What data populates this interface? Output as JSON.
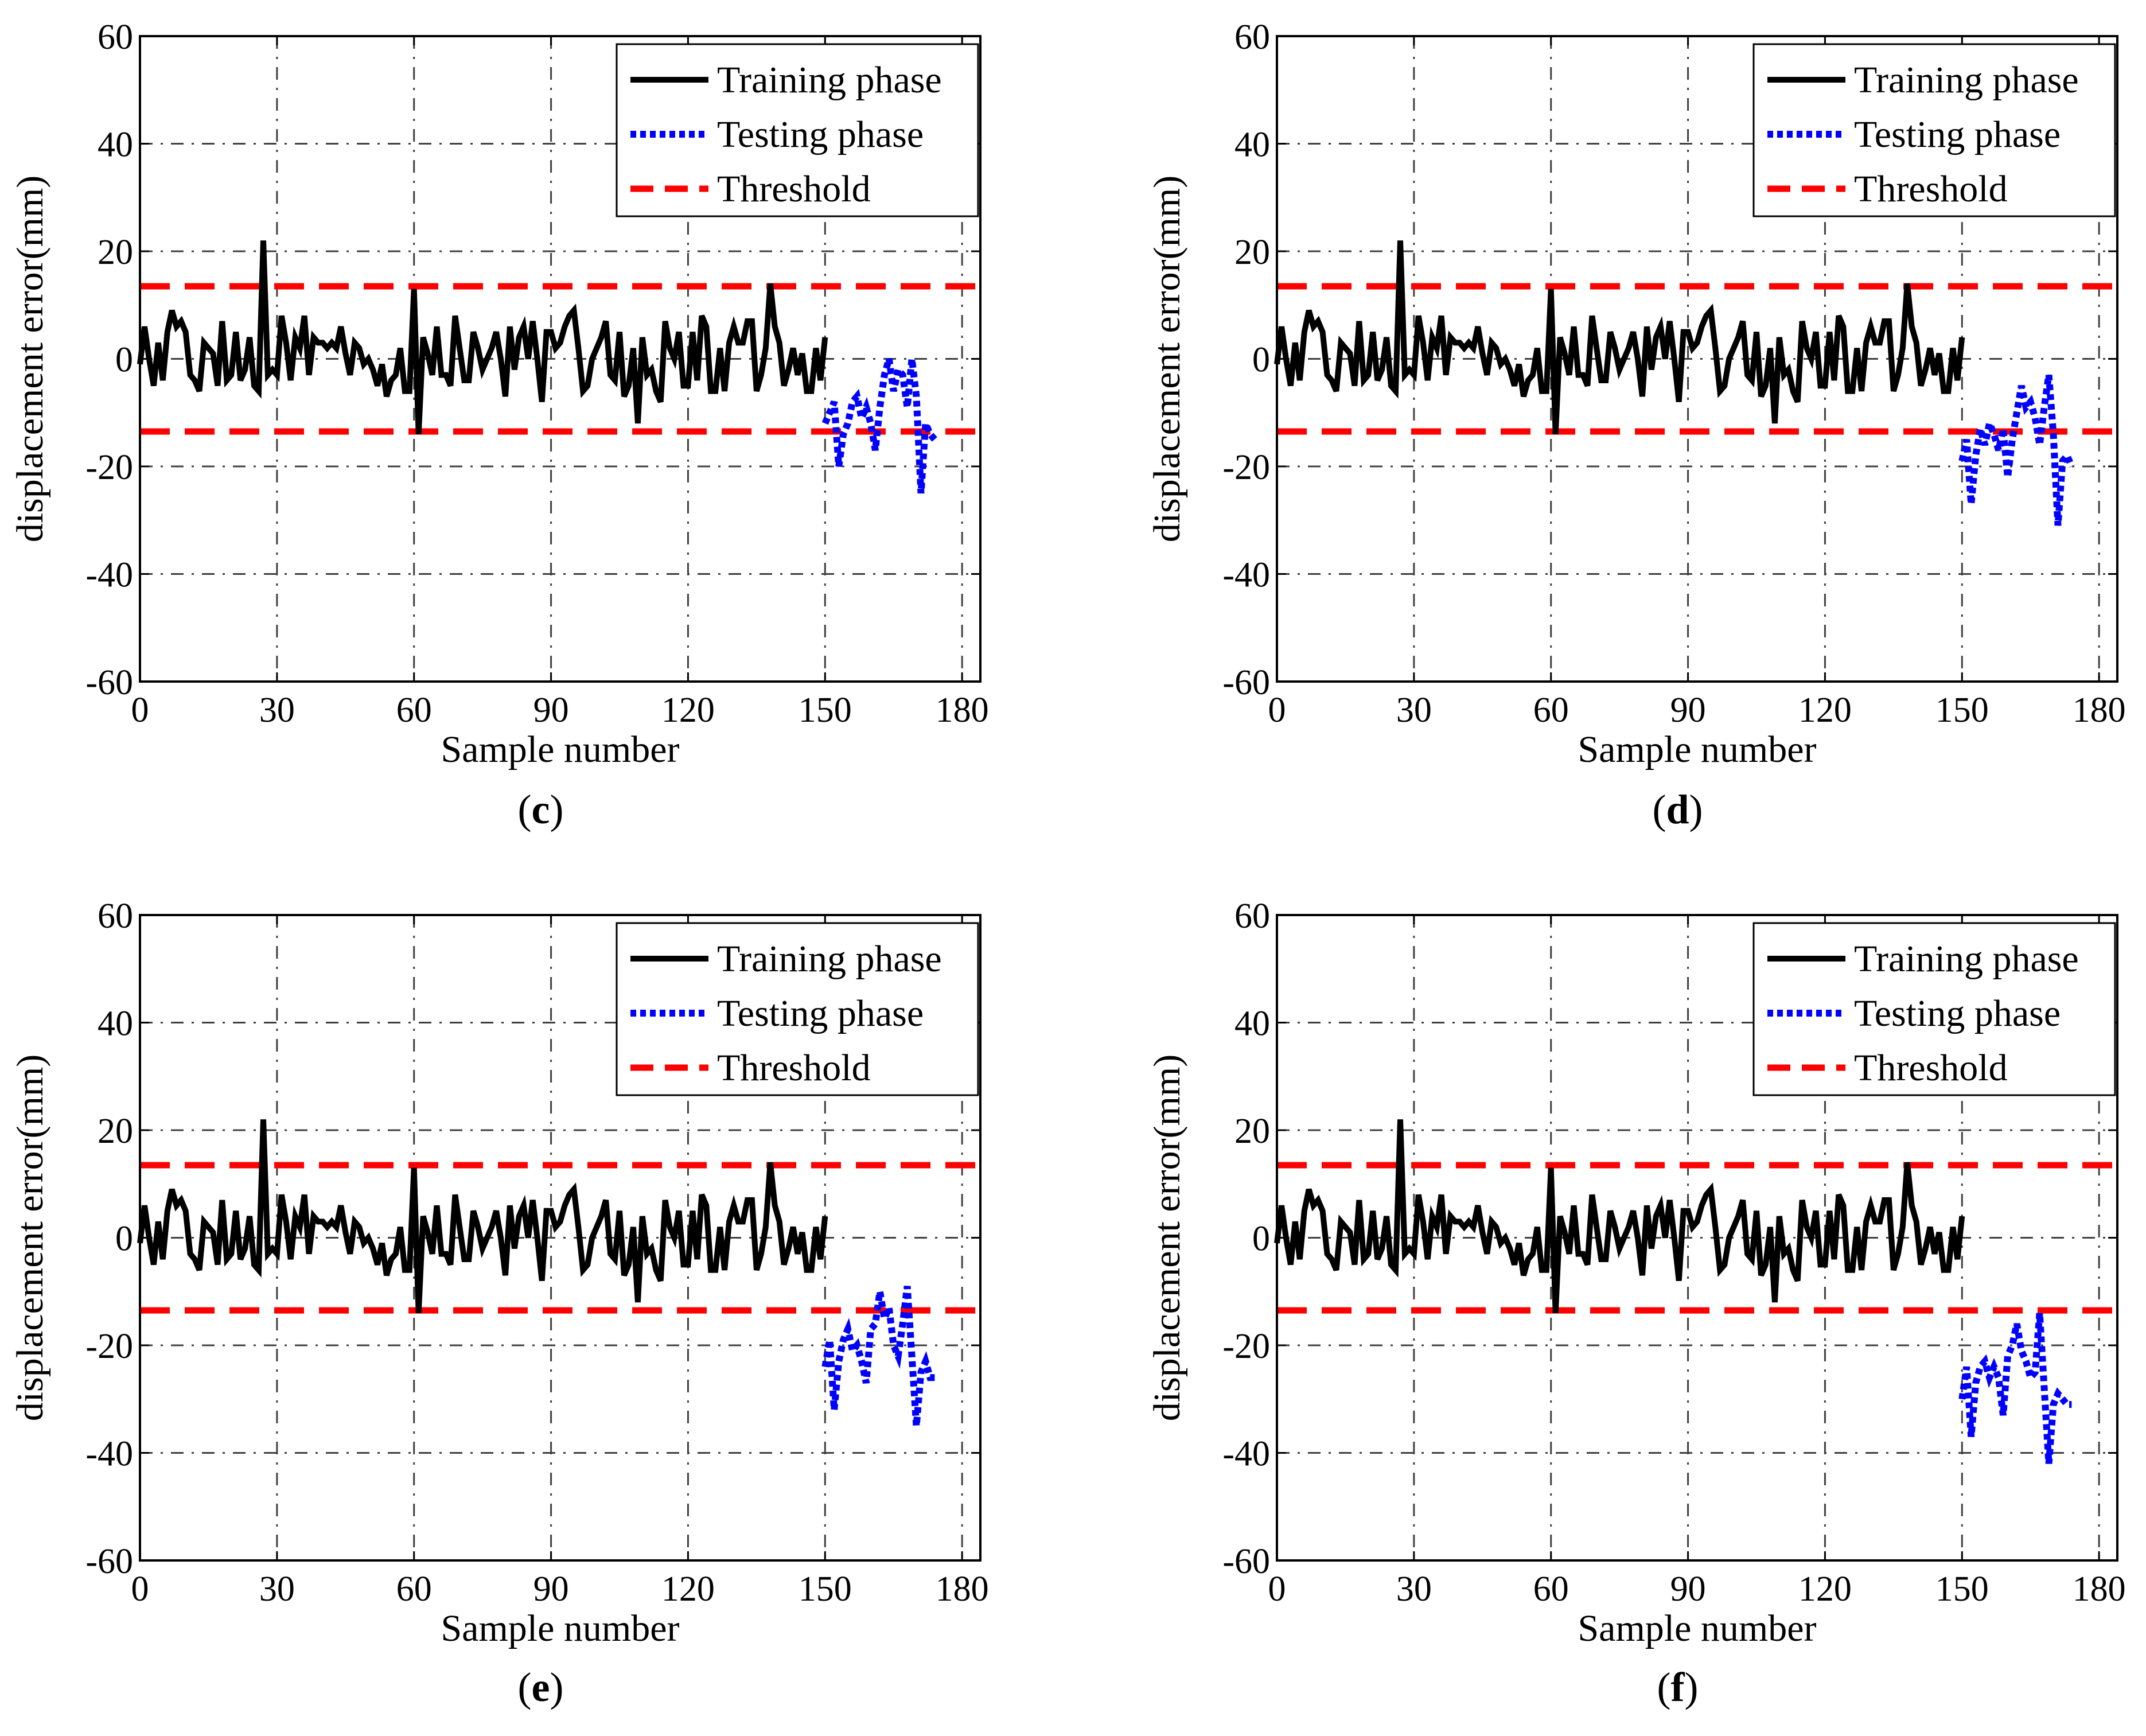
{
  "figure_title": "",
  "chart_data": [
    {
      "panel": "(c)",
      "label_letter": "c",
      "type": "line",
      "xlabel": "Sample number",
      "ylabel": "displacement error(mm)",
      "xlim": [
        0,
        184
      ],
      "ylim": [
        -60,
        60
      ],
      "xticks": [
        0,
        30,
        60,
        90,
        120,
        150,
        180
      ],
      "yticks": [
        -60,
        -40,
        -20,
        0,
        20,
        40,
        60
      ],
      "grid": true,
      "legend_position": "top-right",
      "legend": [
        "Training phase",
        "Testing phase",
        "Threshold"
      ],
      "colors": {
        "training": "#000000",
        "testing": "#0000ff",
        "threshold": "#ff0000"
      },
      "threshold_upper": 13.5,
      "threshold_lower": -13.5,
      "training_x_start": 0,
      "training_values": [
        -1,
        6,
        0,
        -5,
        3,
        -4,
        5,
        9,
        6,
        7,
        5,
        -3,
        -4,
        -6,
        3,
        2,
        1,
        -5,
        7,
        -4,
        -3,
        5,
        -4,
        -2,
        4,
        -5,
        -6,
        22,
        -3,
        -2,
        -3,
        8,
        3,
        -4,
        4,
        2,
        8,
        -3,
        4,
        3,
        3,
        2,
        3,
        2,
        6,
        1,
        -3,
        3,
        2,
        -1,
        0,
        -2,
        -5,
        -1,
        -7,
        -4,
        -3,
        2,
        -6,
        -6,
        13,
        -14,
        4,
        1,
        -3,
        6,
        -3,
        -3,
        -5,
        8,
        2,
        -4,
        -4,
        5,
        2,
        -2,
        0,
        2,
        5,
        0,
        -7,
        6,
        -2,
        4,
        6,
        0,
        7,
        0,
        -8,
        5,
        5,
        2,
        3,
        6,
        8,
        9,
        2,
        -6,
        -5,
        0,
        2,
        4,
        7,
        -3,
        -4,
        5,
        -7,
        -5,
        2,
        -12,
        4,
        -3,
        -2,
        -6,
        -8,
        7,
        2,
        0,
        5,
        -5,
        -5,
        5,
        -4,
        8,
        6,
        -6,
        -6,
        2,
        -6,
        3,
        6,
        3,
        3,
        7,
        7,
        -6,
        -3,
        2,
        14,
        6,
        3,
        -5,
        -2,
        2,
        -3,
        1,
        -6,
        -6,
        2,
        -4,
        4
      ],
      "testing_x_start": 150,
      "testing_values": [
        -12,
        -10,
        -8,
        -20,
        -14,
        -12,
        -8,
        -7,
        -11,
        -9,
        -12,
        -17,
        -9,
        -3,
        0,
        -6,
        -2,
        -3,
        -9,
        0,
        -7,
        -25,
        -12,
        -14,
        -15
      ]
    },
    {
      "panel": "(d)",
      "label_letter": "d",
      "type": "line",
      "xlabel": "Sample number",
      "ylabel": "displacement error(mm)",
      "xlim": [
        0,
        184
      ],
      "ylim": [
        -60,
        60
      ],
      "xticks": [
        0,
        30,
        60,
        90,
        120,
        150,
        180
      ],
      "yticks": [
        -60,
        -40,
        -20,
        0,
        20,
        40,
        60
      ],
      "grid": true,
      "legend_position": "top-right",
      "legend": [
        "Training phase",
        "Testing phase",
        "Threshold"
      ],
      "colors": {
        "training": "#000000",
        "testing": "#0000ff",
        "threshold": "#ff0000"
      },
      "threshold_upper": 13.5,
      "threshold_lower": -13.5,
      "training_x_start": 0,
      "training_values": [
        -1,
        6,
        0,
        -5,
        3,
        -4,
        5,
        9,
        6,
        7,
        5,
        -3,
        -4,
        -6,
        3,
        2,
        1,
        -5,
        7,
        -4,
        -3,
        5,
        -4,
        -2,
        4,
        -5,
        -6,
        22,
        -3,
        -2,
        -3,
        8,
        3,
        -4,
        4,
        2,
        8,
        -3,
        4,
        3,
        3,
        2,
        3,
        2,
        6,
        1,
        -3,
        3,
        2,
        -1,
        0,
        -2,
        -5,
        -1,
        -7,
        -4,
        -3,
        2,
        -6,
        -6,
        13,
        -14,
        4,
        1,
        -3,
        6,
        -3,
        -3,
        -5,
        8,
        2,
        -4,
        -4,
        5,
        2,
        -2,
        0,
        2,
        5,
        0,
        -7,
        6,
        -2,
        4,
        6,
        0,
        7,
        0,
        -8,
        5,
        5,
        2,
        3,
        6,
        8,
        9,
        2,
        -6,
        -5,
        0,
        2,
        4,
        7,
        -3,
        -4,
        5,
        -7,
        -5,
        2,
        -12,
        4,
        -3,
        -2,
        -6,
        -8,
        7,
        2,
        0,
        5,
        -5,
        -5,
        5,
        -4,
        8,
        6,
        -6,
        -6,
        2,
        -6,
        3,
        6,
        3,
        3,
        7,
        7,
        -6,
        -3,
        2,
        14,
        6,
        3,
        -5,
        -2,
        2,
        -3,
        1,
        -6,
        -6,
        2,
        -4,
        4
      ],
      "testing_x_start": 150,
      "testing_values": [
        -19,
        -15,
        -27,
        -18,
        -13,
        -16,
        -12,
        -14,
        -17,
        -13,
        -22,
        -15,
        -10,
        -5,
        -9,
        -8,
        -11,
        -16,
        -9,
        -3,
        -14,
        -31,
        -19,
        -18,
        -20
      ]
    },
    {
      "panel": "(e)",
      "label_letter": "e",
      "type": "line",
      "xlabel": "Sample number",
      "ylabel": "displacement error(mm)",
      "xlim": [
        0,
        184
      ],
      "ylim": [
        -60,
        60
      ],
      "xticks": [
        0,
        30,
        60,
        90,
        120,
        150,
        180
      ],
      "yticks": [
        -60,
        -40,
        -20,
        0,
        20,
        40,
        60
      ],
      "grid": true,
      "legend_position": "top-right",
      "legend": [
        "Training phase",
        "Testing phase",
        "Threshold"
      ],
      "colors": {
        "training": "#000000",
        "testing": "#0000ff",
        "threshold": "#ff0000"
      },
      "threshold_upper": 13.5,
      "threshold_lower": -13.5,
      "training_x_start": 0,
      "training_values": [
        -1,
        6,
        0,
        -5,
        3,
        -4,
        5,
        9,
        6,
        7,
        5,
        -3,
        -4,
        -6,
        3,
        2,
        1,
        -5,
        7,
        -4,
        -3,
        5,
        -4,
        -2,
        4,
        -5,
        -6,
        22,
        -3,
        -2,
        -3,
        8,
        3,
        -4,
        4,
        2,
        8,
        -3,
        4,
        3,
        3,
        2,
        3,
        2,
        6,
        1,
        -3,
        3,
        2,
        -1,
        0,
        -2,
        -5,
        -1,
        -7,
        -4,
        -3,
        2,
        -6,
        -6,
        13,
        -14,
        4,
        1,
        -3,
        6,
        -3,
        -3,
        -5,
        8,
        2,
        -4,
        -4,
        5,
        2,
        -2,
        0,
        2,
        5,
        0,
        -7,
        6,
        -2,
        4,
        6,
        0,
        7,
        0,
        -8,
        5,
        5,
        2,
        3,
        6,
        8,
        9,
        2,
        -6,
        -5,
        0,
        2,
        4,
        7,
        -3,
        -4,
        5,
        -7,
        -5,
        2,
        -12,
        4,
        -3,
        -2,
        -6,
        -8,
        7,
        2,
        0,
        5,
        -5,
        -5,
        5,
        -4,
        8,
        6,
        -6,
        -6,
        2,
        -6,
        3,
        6,
        3,
        3,
        7,
        7,
        -6,
        -3,
        2,
        14,
        6,
        3,
        -5,
        -2,
        2,
        -3,
        1,
        -6,
        -6,
        2,
        -4,
        4
      ],
      "testing_x_start": 150,
      "testing_values": [
        -24,
        -19,
        -32,
        -23,
        -19,
        -17,
        -21,
        -20,
        -23,
        -27,
        -17,
        -16,
        -10,
        -15,
        -13,
        -20,
        -22,
        -16,
        -9,
        -22,
        -35,
        -25,
        -23,
        -26,
        -26
      ]
    },
    {
      "panel": "(f)",
      "label_letter": "f",
      "type": "line",
      "xlabel": "Sample number",
      "ylabel": "displacement error(mm)",
      "xlim": [
        0,
        184
      ],
      "ylim": [
        -60,
        60
      ],
      "xticks": [
        0,
        30,
        60,
        90,
        120,
        150,
        180
      ],
      "yticks": [
        -60,
        -40,
        -20,
        0,
        20,
        40,
        60
      ],
      "grid": true,
      "legend_position": "top-right",
      "legend": [
        "Training phase",
        "Testing phase",
        "Threshold"
      ],
      "colors": {
        "training": "#000000",
        "testing": "#0000ff",
        "threshold": "#ff0000"
      },
      "threshold_upper": 13.5,
      "threshold_lower": -13.5,
      "training_x_start": 0,
      "training_values": [
        -1,
        6,
        0,
        -5,
        3,
        -4,
        5,
        9,
        6,
        7,
        5,
        -3,
        -4,
        -6,
        3,
        2,
        1,
        -5,
        7,
        -4,
        -3,
        5,
        -4,
        -2,
        4,
        -5,
        -6,
        22,
        -3,
        -2,
        -3,
        8,
        3,
        -4,
        4,
        2,
        8,
        -3,
        4,
        3,
        3,
        2,
        3,
        2,
        6,
        1,
        -3,
        3,
        2,
        -1,
        0,
        -2,
        -5,
        -1,
        -7,
        -4,
        -3,
        2,
        -6,
        -6,
        13,
        -14,
        4,
        1,
        -3,
        6,
        -3,
        -3,
        -5,
        8,
        2,
        -4,
        -4,
        5,
        2,
        -2,
        0,
        2,
        5,
        0,
        -7,
        6,
        -2,
        4,
        6,
        0,
        7,
        0,
        -8,
        5,
        5,
        2,
        3,
        6,
        8,
        9,
        2,
        -6,
        -5,
        0,
        2,
        4,
        7,
        -3,
        -4,
        5,
        -7,
        -5,
        2,
        -12,
        4,
        -3,
        -2,
        -6,
        -8,
        7,
        2,
        0,
        5,
        -5,
        -5,
        5,
        -4,
        8,
        6,
        -6,
        -6,
        2,
        -6,
        3,
        6,
        3,
        3,
        7,
        7,
        -6,
        -3,
        2,
        14,
        6,
        3,
        -5,
        -2,
        2,
        -3,
        1,
        -6,
        -6,
        2,
        -4,
        4
      ],
      "testing_x_start": 150,
      "testing_values": [
        -30,
        -24,
        -37,
        -27,
        -24,
        -23,
        -26,
        -24,
        -26,
        -33,
        -22,
        -20,
        -16,
        -21,
        -23,
        -26,
        -25,
        -14,
        -28,
        -42,
        -31,
        -29,
        -30,
        -31,
        -31
      ]
    }
  ]
}
